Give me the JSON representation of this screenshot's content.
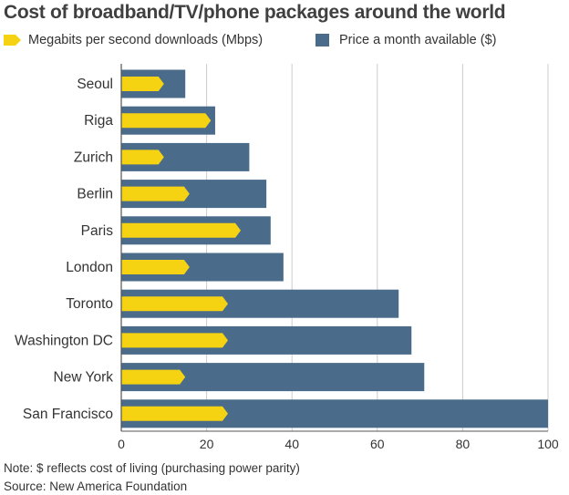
{
  "title": "Cost of broadband/TV/phone packages around the world",
  "legend": {
    "mbps_label": "Megabits per second downloads (Mbps)",
    "price_label": "Price a month available ($)"
  },
  "colors": {
    "mbps": "#f5d312",
    "price": "#4a6b8a",
    "grid": "#cccccc",
    "axis": "#555555"
  },
  "chart_data": {
    "type": "bar",
    "orientation": "horizontal",
    "categories": [
      "Seoul",
      "Riga",
      "Zurich",
      "Berlin",
      "Paris",
      "London",
      "Toronto",
      "Washington DC",
      "New York",
      "San Francisco"
    ],
    "series": [
      {
        "name": "Megabits per second downloads (Mbps)",
        "values": [
          10,
          21,
          10,
          16,
          28,
          16,
          25,
          25,
          15,
          25
        ]
      },
      {
        "name": "Price a month available ($)",
        "values": [
          15,
          22,
          30,
          34,
          35,
          38,
          65,
          68,
          71,
          100
        ]
      }
    ],
    "xlim": [
      0,
      100
    ],
    "xticks": [
      "0",
      "20",
      "40",
      "60",
      "80",
      "100"
    ],
    "grid": true
  },
  "notes": {
    "note": "Note: $ reflects cost of living (purchasing power parity)",
    "source": "Source: New America Foundation"
  }
}
